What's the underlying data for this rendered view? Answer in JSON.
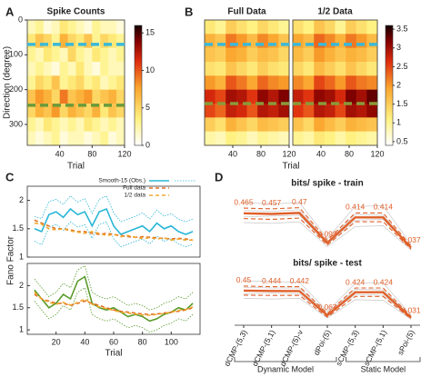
{
  "chart_data": [
    {
      "type": "heatmap",
      "panel": "A",
      "title": "Spike Counts",
      "xlabel": "Trial",
      "ylabel": "Direction (degree)",
      "xlim": [
        0,
        120
      ],
      "xticks": [
        40,
        80,
        120
      ],
      "ylim": [
        0,
        360
      ],
      "yreverse": true,
      "yticks": [
        0,
        100,
        200,
        300
      ],
      "zlim": [
        0,
        16
      ],
      "cticks": [
        0,
        5,
        10,
        15
      ],
      "hlines": [
        {
          "value": 70,
          "color": "#3ab8d8"
        },
        {
          "value": 245,
          "color": "#6a9a3a"
        }
      ],
      "z": [
        [
          2,
          3,
          1,
          2,
          4,
          3,
          2,
          1,
          3,
          2,
          2,
          1
        ],
        [
          4,
          6,
          5,
          3,
          7,
          5,
          4,
          6,
          3,
          5,
          4,
          3
        ],
        [
          3,
          2,
          4,
          3,
          2,
          5,
          3,
          2,
          4,
          3,
          2,
          3
        ],
        [
          2,
          3,
          2,
          1,
          3,
          2,
          4,
          2,
          1,
          3,
          2,
          2
        ],
        [
          3,
          5,
          4,
          6,
          3,
          4,
          5,
          3,
          4,
          2,
          3,
          4
        ],
        [
          6,
          8,
          7,
          5,
          9,
          6,
          7,
          8,
          5,
          6,
          7,
          5
        ],
        [
          5,
          7,
          6,
          8,
          5,
          7,
          6,
          5,
          7,
          4,
          6,
          5
        ],
        [
          3,
          2,
          4,
          3,
          2,
          3,
          2,
          4,
          3,
          2,
          3,
          2
        ],
        [
          2,
          1,
          2,
          3,
          1,
          2,
          2,
          1,
          2,
          3,
          1,
          2
        ]
      ]
    },
    {
      "type": "heatmap",
      "panel": "B",
      "title": "Full Data",
      "xlabel": "Trial",
      "xlim": [
        0,
        120
      ],
      "xticks": [
        40,
        80,
        120
      ],
      "ylim": [
        0,
        360
      ],
      "yreverse": true,
      "zlim": [
        0.4,
        3.6
      ],
      "hlines": [
        {
          "value": 70,
          "color": "#3ab8d8"
        },
        {
          "value": 240,
          "color": "#8a9a3a"
        }
      ],
      "z": [
        [
          1.2,
          1.0,
          1.5,
          1.3,
          1.1,
          1.4,
          1.2,
          1.0
        ],
        [
          1.8,
          1.6,
          2.2,
          2.0,
          1.7,
          2.1,
          1.9,
          1.6
        ],
        [
          1.6,
          1.5,
          1.9,
          1.8,
          1.5,
          1.7,
          1.6,
          1.4
        ],
        [
          1.3,
          1.2,
          1.6,
          1.4,
          1.2,
          1.5,
          1.3,
          1.2
        ],
        [
          2.0,
          1.8,
          2.4,
          2.2,
          1.9,
          2.3,
          2.1,
          2.0
        ],
        [
          2.7,
          2.5,
          3.0,
          2.9,
          2.6,
          3.1,
          2.9,
          3.2
        ],
        [
          2.5,
          2.3,
          2.8,
          2.7,
          2.4,
          2.9,
          2.8,
          3.0
        ],
        [
          1.5,
          1.3,
          1.8,
          1.6,
          1.4,
          1.7,
          1.6,
          1.5
        ],
        [
          0.9,
          0.8,
          1.1,
          1.0,
          0.8,
          1.0,
          0.9,
          0.8
        ]
      ]
    },
    {
      "type": "heatmap",
      "title": "1/2 Data",
      "xlim": [
        0,
        120
      ],
      "xticks": [
        40,
        80,
        120
      ],
      "ylim": [
        0,
        360
      ],
      "yreverse": true,
      "zlim": [
        0.4,
        3.6
      ],
      "cticks": [
        0.5,
        1,
        1.5,
        2,
        2.5,
        3,
        3.5
      ],
      "hlines": [
        {
          "value": 70,
          "color": "#3ab8d8"
        },
        {
          "value": 240,
          "color": "#8a9a3a"
        }
      ],
      "z": [
        [
          1.3,
          1.1,
          1.6,
          1.4,
          1.0,
          1.5,
          1.3,
          1.1
        ],
        [
          1.9,
          1.7,
          2.3,
          2.1,
          1.8,
          2.2,
          2.0,
          1.7
        ],
        [
          1.7,
          1.5,
          2.0,
          1.8,
          1.6,
          1.8,
          1.7,
          1.5
        ],
        [
          1.4,
          1.2,
          1.7,
          1.5,
          1.3,
          1.6,
          1.4,
          1.2
        ],
        [
          2.1,
          1.9,
          2.5,
          2.3,
          2.0,
          2.4,
          2.2,
          2.1
        ],
        [
          2.8,
          2.6,
          3.1,
          3.0,
          2.7,
          3.2,
          3.0,
          3.3
        ],
        [
          2.6,
          2.4,
          2.9,
          2.8,
          2.5,
          3.0,
          2.9,
          3.1
        ],
        [
          1.6,
          1.4,
          1.9,
          1.7,
          1.5,
          1.8,
          1.7,
          1.6
        ],
        [
          1.0,
          0.9,
          1.2,
          1.1,
          0.9,
          1.1,
          1.0,
          0.9
        ]
      ]
    },
    {
      "type": "line",
      "panel": "C",
      "ylabel": "Fano Factor",
      "legend": "upper right",
      "x": [
        5,
        10,
        15,
        20,
        25,
        30,
        35,
        40,
        45,
        50,
        55,
        60,
        65,
        70,
        75,
        80,
        85,
        90,
        95,
        100,
        105,
        110,
        115
      ],
      "xlim": [
        0,
        120
      ],
      "ylim": [
        1,
        2.25
      ],
      "yticks": [
        1,
        1.5,
        2
      ],
      "series": [
        {
          "name": "Smooth-15 (Obs.)",
          "color": "#29b6d6",
          "values": [
            1.5,
            1.45,
            1.75,
            1.8,
            1.7,
            1.85,
            1.75,
            1.8,
            1.55,
            1.8,
            1.85,
            1.55,
            1.4,
            1.45,
            1.5,
            1.55,
            1.45,
            1.6,
            1.5,
            1.55,
            1.45,
            1.4,
            1.45
          ],
          "upper": [
            1.72,
            1.68,
            1.98,
            2.02,
            1.93,
            2.08,
            1.97,
            2.03,
            1.77,
            2.02,
            2.08,
            1.78,
            1.62,
            1.67,
            1.72,
            1.78,
            1.67,
            1.83,
            1.72,
            1.77,
            1.67,
            1.62,
            1.67
          ],
          "lower": [
            1.28,
            1.22,
            1.52,
            1.58,
            1.47,
            1.62,
            1.53,
            1.57,
            1.33,
            1.58,
            1.62,
            1.32,
            1.18,
            1.23,
            1.28,
            1.32,
            1.23,
            1.37,
            1.28,
            1.33,
            1.23,
            1.18,
            1.23
          ]
        },
        {
          "name": "Full data",
          "color": "#e07020",
          "dashed": true,
          "values": [
            1.65,
            1.6,
            1.55,
            1.5,
            1.5,
            1.48,
            1.45,
            1.45,
            1.42,
            1.4,
            1.42,
            1.4,
            1.38,
            1.36,
            1.35,
            1.36,
            1.35,
            1.34,
            1.33,
            1.32,
            1.33,
            1.32,
            1.3
          ]
        },
        {
          "name": "1/2 data",
          "color": "#f0a830",
          "dashed": true,
          "values": [
            1.6,
            1.58,
            1.5,
            1.48,
            1.5,
            1.46,
            1.44,
            1.42,
            1.45,
            1.42,
            1.38,
            1.4,
            1.36,
            1.38,
            1.35,
            1.33,
            1.34,
            1.32,
            1.34,
            1.3,
            1.32,
            1.3,
            1.3
          ]
        }
      ]
    },
    {
      "type": "line",
      "xlabel": "Trial",
      "x": [
        5,
        10,
        15,
        20,
        25,
        30,
        35,
        40,
        45,
        50,
        55,
        60,
        65,
        70,
        75,
        80,
        85,
        90,
        95,
        100,
        105,
        110,
        115
      ],
      "xlim": [
        0,
        120
      ],
      "xticks": [
        20,
        40,
        60,
        80,
        100
      ],
      "ylim": [
        0.9,
        2.5
      ],
      "yticks": [
        1,
        1.5,
        2
      ],
      "series": [
        {
          "color": "#5a9a2a",
          "values": [
            1.9,
            1.7,
            1.5,
            1.6,
            1.8,
            1.7,
            2.1,
            2.2,
            1.6,
            1.5,
            1.45,
            1.5,
            1.4,
            1.3,
            1.35,
            1.3,
            1.2,
            1.25,
            1.35,
            1.4,
            1.5,
            1.45,
            1.6
          ],
          "upper": [
            2.15,
            1.95,
            1.75,
            1.85,
            2.05,
            1.95,
            2.35,
            2.45,
            1.85,
            1.75,
            1.7,
            1.75,
            1.65,
            1.55,
            1.6,
            1.55,
            1.45,
            1.5,
            1.6,
            1.65,
            1.75,
            1.7,
            1.85
          ],
          "lower": [
            1.65,
            1.45,
            1.25,
            1.35,
            1.55,
            1.45,
            1.85,
            1.95,
            1.35,
            1.25,
            1.2,
            1.25,
            1.15,
            1.05,
            1.1,
            1.05,
            0.95,
            1.0,
            1.1,
            1.15,
            1.25,
            1.2,
            1.35
          ]
        },
        {
          "color": "#e07020",
          "dashed": true,
          "values": [
            1.8,
            1.7,
            1.65,
            1.6,
            1.6,
            1.55,
            1.6,
            1.65,
            1.6,
            1.55,
            1.5,
            1.45,
            1.42,
            1.4,
            1.38,
            1.36,
            1.35,
            1.36,
            1.38,
            1.4,
            1.42,
            1.45,
            1.5
          ]
        },
        {
          "color": "#f0a830",
          "dashed": true,
          "values": [
            1.85,
            1.7,
            1.62,
            1.58,
            1.62,
            1.56,
            1.62,
            1.7,
            1.58,
            1.52,
            1.48,
            1.44,
            1.4,
            1.38,
            1.36,
            1.34,
            1.33,
            1.35,
            1.37,
            1.4,
            1.44,
            1.46,
            1.52
          ]
        }
      ]
    },
    {
      "type": "profile",
      "panel": "D",
      "title": "bits/ spike - train",
      "ylim": [
        0,
        0.7
      ],
      "data_labels": true,
      "background": [
        [
          0.6,
          0.58,
          0.6,
          0.15,
          0.55,
          0.56,
          0.08
        ],
        [
          0.35,
          0.34,
          0.36,
          0.05,
          0.3,
          0.31,
          0.01
        ],
        [
          0.5,
          0.49,
          0.51,
          0.11,
          0.45,
          0.44,
          0.05
        ],
        [
          0.42,
          0.43,
          0.44,
          0.08,
          0.38,
          0.39,
          0.03
        ]
      ],
      "series": [
        {
          "color": "#e0602a",
          "values": [
            0.465,
            0.457,
            0.47,
            0.098,
            0.414,
            0.414,
            0.037
          ],
          "upper": [
            0.53,
            0.52,
            0.535,
            0.13,
            0.47,
            0.47,
            0.06
          ],
          "lower": [
            0.4,
            0.39,
            0.405,
            0.07,
            0.36,
            0.36,
            0.02
          ]
        }
      ]
    },
    {
      "type": "profile",
      "title": "bits/ spike - test",
      "ylim": [
        0,
        0.7
      ],
      "data_labels": true,
      "categories": [
        "dCMP-(5,3)",
        "dCMP-(5,1)",
        "dCMP-(5)-ν",
        "dPoi-(5)",
        "sCMP-(5,3)",
        "sCMP-(5,1)",
        "sPoi-(5)"
      ],
      "groups": [
        {
          "label": "Dynamic Model",
          "from": 0,
          "to": 3
        },
        {
          "label": "Static Model",
          "from": 4,
          "to": 6
        }
      ],
      "background": [
        [
          0.6,
          0.59,
          0.58,
          0.13,
          0.56,
          0.57,
          0.07
        ],
        [
          0.33,
          0.32,
          0.33,
          0.03,
          0.31,
          0.3,
          0.01
        ],
        [
          0.5,
          0.49,
          0.49,
          0.09,
          0.47,
          0.46,
          0.05
        ],
        [
          0.4,
          0.41,
          0.4,
          0.06,
          0.39,
          0.38,
          0.02
        ]
      ],
      "series": [
        {
          "color": "#e0602a",
          "values": [
            0.45,
            0.444,
            0.442,
            0.067,
            0.424,
            0.424,
            0.031
          ],
          "upper": [
            0.52,
            0.51,
            0.51,
            0.1,
            0.49,
            0.49,
            0.055
          ],
          "lower": [
            0.38,
            0.375,
            0.375,
            0.04,
            0.36,
            0.36,
            0.015
          ]
        }
      ]
    }
  ]
}
